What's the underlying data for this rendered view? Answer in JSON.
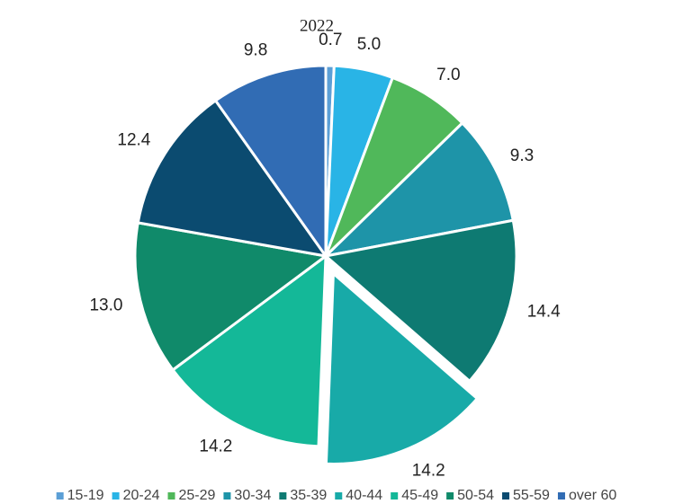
{
  "chart_data": {
    "type": "pie",
    "title": "2022",
    "categories": [
      "15-19",
      "20-24",
      "25-29",
      "30-34",
      "35-39",
      "40-44",
      "45-49",
      "50-54",
      "55-59",
      "over 60"
    ],
    "values": [
      0.7,
      5.0,
      7.0,
      9.3,
      14.4,
      14.2,
      14.2,
      13.0,
      12.4,
      9.8
    ],
    "value_labels": [
      "0.7",
      "5.0",
      "7.0",
      "9.3",
      "14.4",
      "14.2",
      "14.2",
      "13.0",
      "12.4",
      "9.8"
    ],
    "colors": [
      "#5b9fd6",
      "#29b4e6",
      "#50b85a",
      "#1e94a8",
      "#0e7a72",
      "#18aaa8",
      "#14b898",
      "#108a6a",
      "#0b4b70",
      "#316cb4"
    ],
    "explode": [
      0,
      0,
      0,
      0,
      0,
      0.1,
      0,
      0,
      0,
      0
    ],
    "legend": "bottom"
  }
}
